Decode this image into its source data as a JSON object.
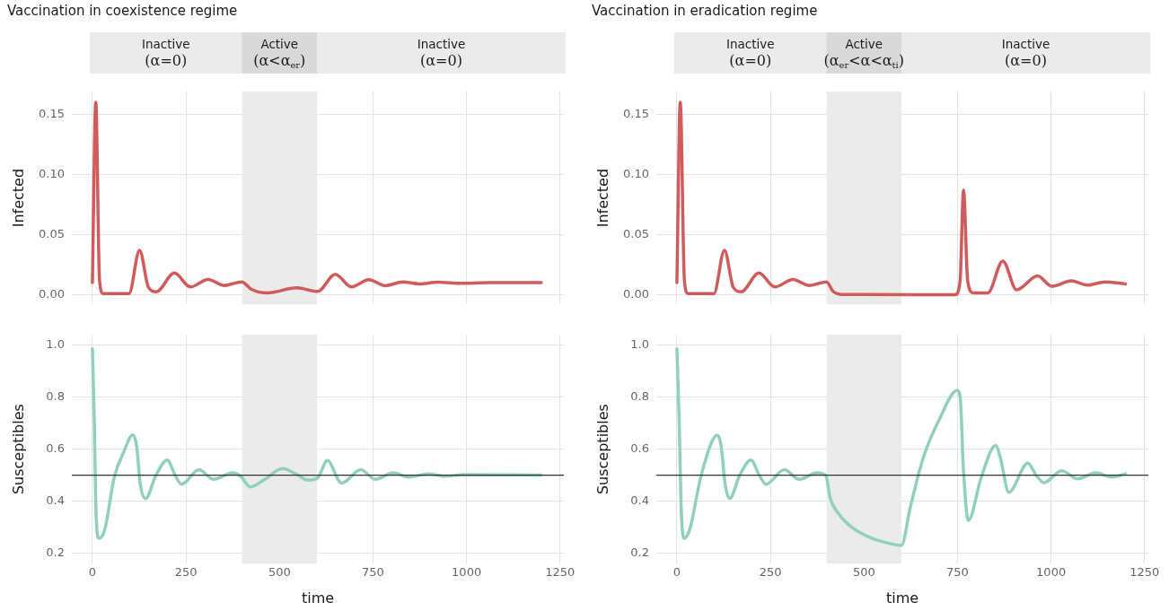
{
  "chart_data": [
    {
      "type": "line",
      "title": "Vaccination in coexistence regime",
      "ylabel": "Infected",
      "legend": false,
      "grid": true,
      "marker": "none",
      "line_style": "solid",
      "tick_labels": "y",
      "xlim": [
        -55,
        1260
      ],
      "xticks": [
        0,
        250,
        500,
        750,
        1000,
        1250
      ],
      "ylim": [
        -0.008,
        0.169
      ],
      "yticks": [
        {
          "value": 0,
          "label": "0.00"
        },
        {
          "value": 0.05,
          "label": "0.05"
        },
        {
          "value": 0.1,
          "label": "0.10"
        },
        {
          "value": 0.15,
          "label": "0.15"
        }
      ],
      "bands": [
        {
          "axis": "x",
          "from": 400,
          "to": 600,
          "label": "Active\n(α<α$_{er}$)",
          "color": "#ebebeb"
        }
      ],
      "annotations": [
        "Inactive\n(α=0)",
        "Inactive\n(α=0)"
      ],
      "series": [
        {
          "color": "#d15b5b",
          "x": [
            0,
            9,
            19,
            29,
            98,
            126,
            150,
            171,
            219,
            262,
            309,
            352,
            399,
            425,
            468,
            546,
            602,
            649,
            692,
            739,
            782,
            830,
            873,
            924,
            976,
            1062,
            1200
          ],
          "values": [
            0.01,
            0.16,
            0.012,
            0.001,
            0.001,
            0.037,
            0.006,
            0.0025,
            0.018,
            0.0065,
            0.0127,
            0.0077,
            0.0107,
            0.0045,
            0.0015,
            0.0057,
            0.0027,
            0.017,
            0.0065,
            0.0125,
            0.0075,
            0.0107,
            0.009,
            0.0105,
            0.0095,
            0.01,
            0.01
          ]
        }
      ]
    },
    {
      "type": "line",
      "title": "Vaccination in eradication regime",
      "ylabel": "Infected",
      "legend": false,
      "grid": true,
      "marker": "none",
      "line_style": "solid",
      "tick_labels": "y",
      "xlim": [
        -55,
        1260
      ],
      "xticks": [
        0,
        250,
        500,
        750,
        1000,
        1250
      ],
      "ylim": [
        -0.008,
        0.169
      ],
      "yticks": [
        {
          "value": 0,
          "label": "0.00"
        },
        {
          "value": 0.05,
          "label": "0.05"
        },
        {
          "value": 0.1,
          "label": "0.10"
        },
        {
          "value": 0.15,
          "label": "0.15"
        }
      ],
      "bands": [
        {
          "axis": "x",
          "from": 400,
          "to": 600,
          "label": "Active\n(α$_{er}$<α<α$_{ti}$)",
          "color": "#ebebeb"
        }
      ],
      "annotations": [
        "Inactive\n(α=0)",
        "Inactive\n(α=0)"
      ],
      "series": [
        {
          "color": "#d15b5b",
          "x": [
            0,
            9,
            20,
            30,
            99,
            127,
            151,
            172,
            219,
            262,
            310,
            353,
            400,
            417,
            443,
            744,
            757,
            766,
            777,
            792,
            831,
            871,
            908,
            964,
            1002,
            1054,
            1097,
            1145,
            1199
          ],
          "values": [
            0.01,
            0.16,
            0.012,
            0.001,
            0.001,
            0.037,
            0.006,
            0.0025,
            0.018,
            0.0065,
            0.0127,
            0.0077,
            0.0107,
            0.003,
            0.0002,
            0,
            0.012,
            0.087,
            0.012,
            0.0015,
            0.0015,
            0.028,
            0.004,
            0.0157,
            0.007,
            0.0115,
            0.008,
            0.0107,
            0.009
          ]
        }
      ]
    },
    {
      "type": "line",
      "xlabel": "time",
      "ylabel": "Susceptibles",
      "legend": false,
      "grid": true,
      "marker": "none",
      "line_style": "solid",
      "xlim": [
        -55,
        1260
      ],
      "xticks": [
        0,
        250,
        500,
        750,
        1000,
        1250
      ],
      "ylim": [
        0.16,
        1.04
      ],
      "yticks": [
        {
          "value": 0.2,
          "label": "0.2"
        },
        {
          "value": 0.4,
          "label": "0.4"
        },
        {
          "value": 0.6,
          "label": "0.6"
        },
        {
          "value": 0.8,
          "label": "0.8"
        },
        {
          "value": 1,
          "label": "1.0"
        }
      ],
      "bands": [
        {
          "axis": "x",
          "from": 400,
          "to": 600,
          "color": "#ebebeb"
        }
      ],
      "ref_lines": [
        {
          "axis": "y",
          "value": 0.5,
          "color": "#333333"
        }
      ],
      "series": [
        {
          "color": "#91d1ba",
          "x": [
            0,
            5,
            9,
            17,
            33,
            58,
            84,
            108,
            118,
            128,
            142,
            170,
            200,
            221,
            238,
            285,
            324,
            375,
            396,
            422,
            461,
            508,
            546,
            576,
            602,
            628,
            666,
            717,
            756,
            803,
            846,
            897,
            944,
            991,
            1199
          ],
          "values": [
            0.986,
            0.713,
            0.39,
            0.257,
            0.29,
            0.49,
            0.59,
            0.655,
            0.614,
            0.465,
            0.41,
            0.5,
            0.558,
            0.5,
            0.465,
            0.521,
            0.484,
            0.509,
            0.496,
            0.455,
            0.484,
            0.525,
            0.503,
            0.481,
            0.49,
            0.556,
            0.469,
            0.521,
            0.484,
            0.509,
            0.493,
            0.505,
            0.496,
            0.502,
            0.5
          ]
        }
      ]
    },
    {
      "type": "line",
      "xlabel": "time",
      "ylabel": "Susceptibles",
      "legend": false,
      "grid": true,
      "marker": "none",
      "line_style": "solid",
      "xlim": [
        -55,
        1260
      ],
      "xticks": [
        0,
        250,
        500,
        750,
        1000,
        1250
      ],
      "ylim": [
        0.16,
        1.04
      ],
      "yticks": [
        {
          "value": 0.2,
          "label": "0.2"
        },
        {
          "value": 0.4,
          "label": "0.4"
        },
        {
          "value": 0.6,
          "label": "0.6"
        },
        {
          "value": 0.8,
          "label": "0.8"
        },
        {
          "value": 1,
          "label": "1.0"
        }
      ],
      "bands": [
        {
          "axis": "x",
          "from": 400,
          "to": 600,
          "color": "#ebebeb"
        }
      ],
      "ref_lines": [
        {
          "axis": "y",
          "value": 0.5,
          "color": "#333333"
        }
      ],
      "series": [
        {
          "color": "#91d1ba",
          "x": [
            0,
            6,
            11,
            19,
            34,
            65,
            108,
            118,
            129,
            141,
            168,
            198,
            220,
            238,
            287,
            327,
            374,
            398,
            409,
            435,
            469,
            512,
            555,
            600,
            624,
            658,
            701,
            749,
            757,
            766,
            779,
            813,
            852,
            865,
            887,
            938,
            960,
            981,
            1028,
            1071,
            1119,
            1162,
            1199
          ],
          "values": [
            0.986,
            0.713,
            0.39,
            0.257,
            0.29,
            0.5,
            0.654,
            0.614,
            0.465,
            0.41,
            0.5,
            0.558,
            0.5,
            0.465,
            0.521,
            0.484,
            0.509,
            0.5,
            0.416,
            0.347,
            0.298,
            0.263,
            0.242,
            0.23,
            0.378,
            0.565,
            0.713,
            0.825,
            0.8,
            0.515,
            0.326,
            0.49,
            0.614,
            0.564,
            0.434,
            0.546,
            0.5,
            0.471,
            0.517,
            0.486,
            0.509,
            0.493,
            0.505
          ]
        }
      ]
    }
  ]
}
